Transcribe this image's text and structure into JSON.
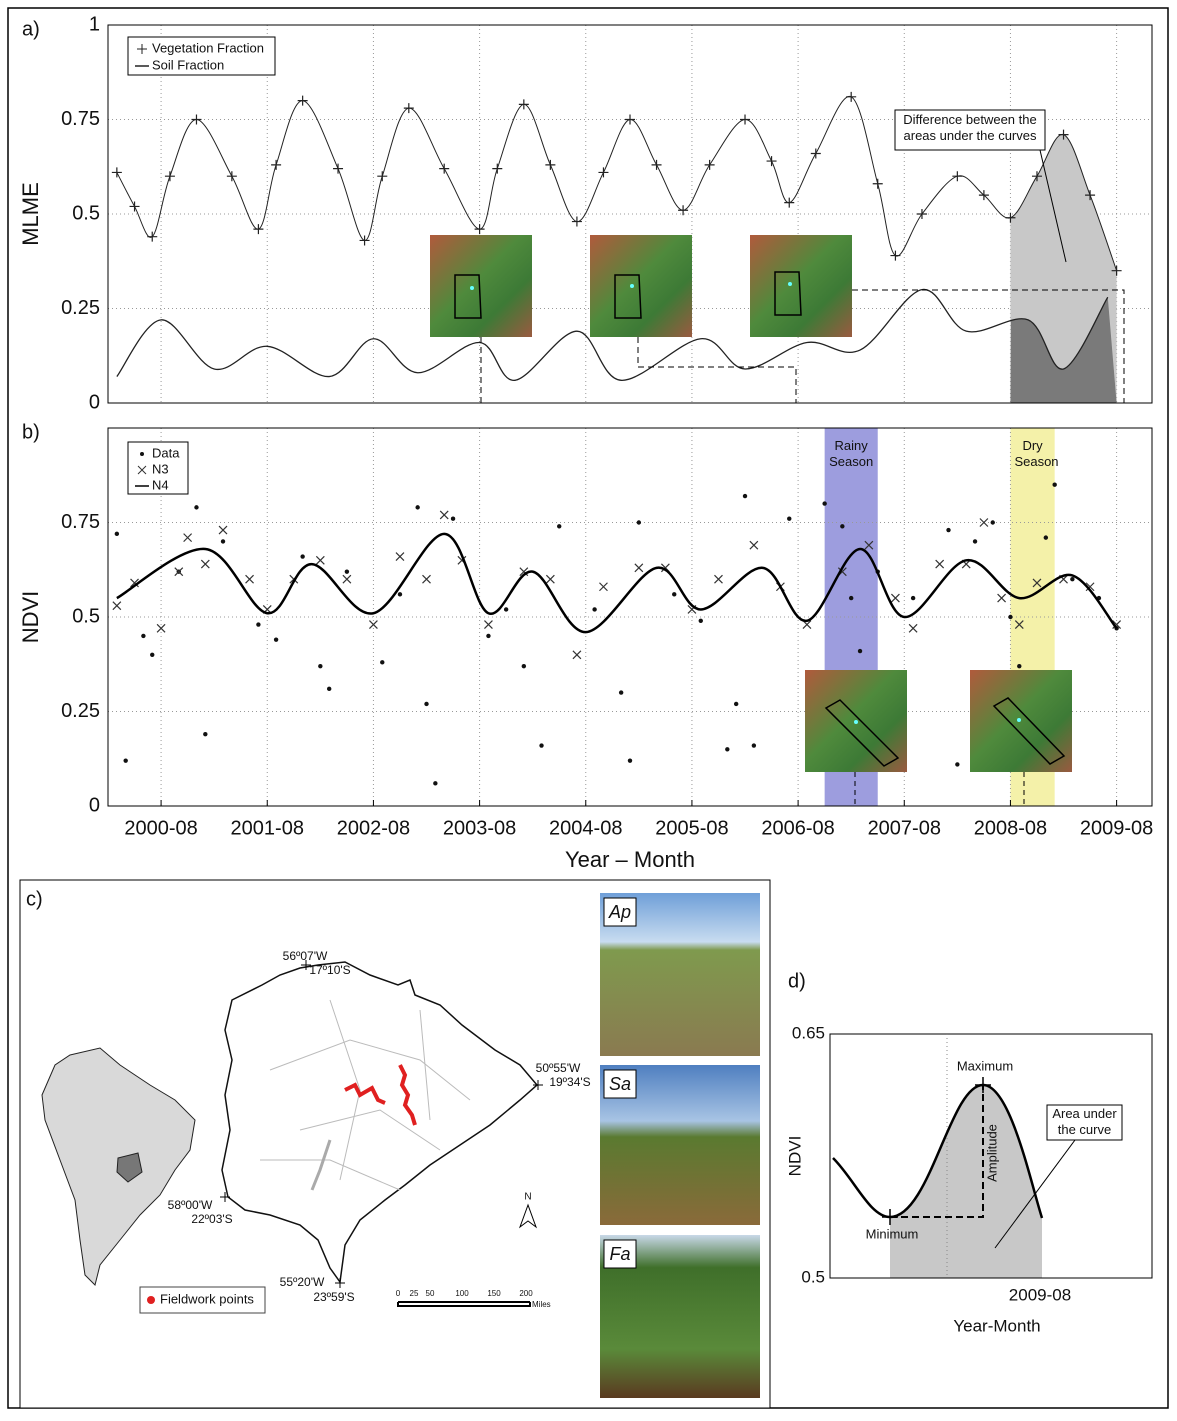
{
  "chart_data": [
    {
      "type": "line",
      "panel_label": "a)",
      "ylabel": "MLME",
      "xlim": [
        "2000-02",
        "2009-12"
      ],
      "ylim": [
        0,
        1
      ],
      "yticks": [
        0,
        0.25,
        0.5,
        0.75,
        1
      ],
      "grid": true,
      "series": [
        {
          "name": "Vegetation Fraction",
          "color": "#222222",
          "marker": "plus",
          "x": [
            "2000-03",
            "2000-05",
            "2000-07",
            "2000-09",
            "2000-12",
            "2001-04",
            "2001-07",
            "2001-09",
            "2001-12",
            "2002-04",
            "2002-07",
            "2002-09",
            "2002-12",
            "2003-04",
            "2003-08",
            "2003-10",
            "2004-01",
            "2004-04",
            "2004-07",
            "2004-10",
            "2005-01",
            "2005-04",
            "2005-07",
            "2005-10",
            "2006-02",
            "2006-05",
            "2006-07",
            "2006-10",
            "2007-02",
            "2007-05",
            "2007-07",
            "2007-10",
            "2008-02",
            "2008-05",
            "2008-08",
            "2008-11",
            "2009-02",
            "2009-05",
            "2009-08"
          ],
          "values": [
            0.61,
            0.52,
            0.44,
            0.6,
            0.75,
            0.6,
            0.46,
            0.63,
            0.8,
            0.62,
            0.43,
            0.6,
            0.78,
            0.62,
            0.46,
            0.62,
            0.79,
            0.63,
            0.48,
            0.61,
            0.75,
            0.63,
            0.51,
            0.63,
            0.75,
            0.64,
            0.53,
            0.66,
            0.81,
            0.58,
            0.39,
            0.5,
            0.6,
            0.55,
            0.49,
            0.6,
            0.71,
            0.55,
            0.35
          ]
        },
        {
          "name": "Soil Fraction",
          "color": "#222222",
          "marker": "none",
          "x": [
            "2000-03",
            "2000-08",
            "2001-02",
            "2001-08",
            "2002-03",
            "2002-08",
            "2003-01",
            "2003-08",
            "2003-12",
            "2004-07",
            "2004-12",
            "2005-09",
            "2006-02",
            "2006-09",
            "2007-03",
            "2007-10",
            "2008-03",
            "2008-10",
            "2009-02",
            "2009-07"
          ],
          "values": [
            0.07,
            0.22,
            0.09,
            0.15,
            0.07,
            0.17,
            0.08,
            0.16,
            0.06,
            0.19,
            0.06,
            0.17,
            0.09,
            0.16,
            0.14,
            0.3,
            0.19,
            0.22,
            0.09,
            0.28
          ]
        }
      ],
      "highlight": {
        "from": "2008-08",
        "to": "2009-08",
        "upper_color": "#c8c8c8",
        "lower_color": "#7a7a7a"
      },
      "annotation": "Difference between the areas under the curves"
    },
    {
      "type": "line",
      "panel_label": "b)",
      "ylabel": "NDVI",
      "xlabel": "Year – Month",
      "xlim": [
        "2000-02",
        "2009-12"
      ],
      "ylim": [
        0,
        1
      ],
      "yticks": [
        0,
        0.25,
        0.5,
        0.75
      ],
      "grid": true,
      "xticks": [
        "2000-08",
        "2001-08",
        "2002-08",
        "2003-08",
        "2004-08",
        "2005-08",
        "2006-08",
        "2007-08",
        "2008-08",
        "2009-08"
      ],
      "series": [
        {
          "name": "Data",
          "color": "#111111",
          "marker": "dot",
          "x": [
            "2000-03",
            "2000-04",
            "2000-06",
            "2000-07",
            "2000-10",
            "2000-12",
            "2001-01",
            "2001-03",
            "2001-07",
            "2001-09",
            "2001-12",
            "2002-02",
            "2002-03",
            "2002-05",
            "2002-09",
            "2002-11",
            "2003-01",
            "2003-02",
            "2003-03",
            "2003-05",
            "2003-09",
            "2003-11",
            "2004-01",
            "2004-03",
            "2004-05",
            "2004-09",
            "2004-12",
            "2005-01",
            "2005-02",
            "2005-06",
            "2005-09",
            "2005-12",
            "2006-01",
            "2006-02",
            "2006-03",
            "2006-07",
            "2006-11",
            "2007-01",
            "2007-02",
            "2007-03",
            "2007-05",
            "2007-09",
            "2008-01",
            "2008-02",
            "2008-04",
            "2008-06",
            "2008-08",
            "2008-09",
            "2008-12",
            "2009-01",
            "2009-03",
            "2009-06",
            "2009-08"
          ],
          "values": [
            0.72,
            0.12,
            0.45,
            0.4,
            0.62,
            0.79,
            0.19,
            0.7,
            0.48,
            0.44,
            0.66,
            0.37,
            0.31,
            0.62,
            0.38,
            0.56,
            0.79,
            0.27,
            0.06,
            0.76,
            0.45,
            0.52,
            0.37,
            0.16,
            0.74,
            0.52,
            0.3,
            0.12,
            0.75,
            0.56,
            0.49,
            0.15,
            0.27,
            0.82,
            0.16,
            0.76,
            0.8,
            0.74,
            0.55,
            0.41,
            0.62,
            0.55,
            0.73,
            0.11,
            0.7,
            0.75,
            0.5,
            0.37,
            0.71,
            0.85,
            0.6,
            0.55,
            0.47
          ]
        },
        {
          "name": "N3",
          "color": "#333333",
          "marker": "cross",
          "x": [
            "2000-03",
            "2000-05",
            "2000-08",
            "2000-10",
            "2000-11",
            "2001-01",
            "2001-03",
            "2001-06",
            "2001-08",
            "2001-11",
            "2002-02",
            "2002-05",
            "2002-08",
            "2002-11",
            "2003-02",
            "2003-04",
            "2003-06",
            "2003-09",
            "2004-01",
            "2004-04",
            "2004-07",
            "2004-10",
            "2005-02",
            "2005-05",
            "2005-08",
            "2005-11",
            "2006-03",
            "2006-06",
            "2006-09",
            "2007-01",
            "2007-04",
            "2007-07",
            "2007-09",
            "2007-12",
            "2008-03",
            "2008-05",
            "2008-07",
            "2008-09",
            "2008-11",
            "2009-02",
            "2009-05",
            "2009-08"
          ],
          "values": [
            0.53,
            0.59,
            0.47,
            0.62,
            0.71,
            0.64,
            0.73,
            0.6,
            0.52,
            0.6,
            0.65,
            0.6,
            0.48,
            0.66,
            0.6,
            0.77,
            0.65,
            0.48,
            0.62,
            0.6,
            0.4,
            0.58,
            0.63,
            0.63,
            0.52,
            0.6,
            0.69,
            0.58,
            0.48,
            0.62,
            0.69,
            0.55,
            0.47,
            0.64,
            0.64,
            0.75,
            0.55,
            0.48,
            0.59,
            0.6,
            0.58,
            0.48
          ]
        },
        {
          "name": "N4",
          "color": "#000000",
          "marker": "none",
          "x": [
            "2000-03",
            "2001-01",
            "2001-08",
            "2002-01",
            "2002-08",
            "2003-04",
            "2003-09",
            "2004-02",
            "2004-08",
            "2005-04",
            "2005-09",
            "2006-04",
            "2006-09",
            "2007-03",
            "2007-08",
            "2008-03",
            "2008-09",
            "2009-03",
            "2009-08"
          ],
          "values": [
            0.55,
            0.68,
            0.51,
            0.64,
            0.51,
            0.72,
            0.51,
            0.62,
            0.46,
            0.63,
            0.52,
            0.63,
            0.49,
            0.68,
            0.5,
            0.65,
            0.55,
            0.61,
            0.47
          ]
        }
      ],
      "bands": [
        {
          "label": "Rainy Season",
          "from": "2006-11",
          "to": "2007-05",
          "color": "#8c8cd8"
        },
        {
          "label": "Dry Season",
          "from": "2008-08",
          "to": "2009-01",
          "color": "#f2ee9a"
        }
      ]
    },
    {
      "type": "line",
      "panel_label": "d)",
      "ylabel": "NDVI",
      "xlabel": "Year-Month",
      "ylim": [
        0.5,
        0.65
      ],
      "yticks": [
        0.5,
        0.65
      ],
      "xtick_label": "2009-08",
      "annotations": {
        "maximum": "Maximum",
        "minimum": "Minimum",
        "amplitude": "Amplitude",
        "area": "Area under the curve"
      }
    }
  ],
  "map": {
    "panel_label": "c)",
    "coordinates": [
      "56º07'W",
      "17º10'S",
      "50º55'W",
      "19º34'S",
      "58º00'W",
      "22º03'S",
      "55º20'W",
      "23º59'S"
    ],
    "legend": "Fieldwork points",
    "north": "N",
    "scale_labels": [
      "0",
      "25",
      "50",
      "100",
      "150",
      "200",
      "Miles"
    ],
    "photos": [
      "Ap",
      "Sa",
      "Fa"
    ]
  }
}
